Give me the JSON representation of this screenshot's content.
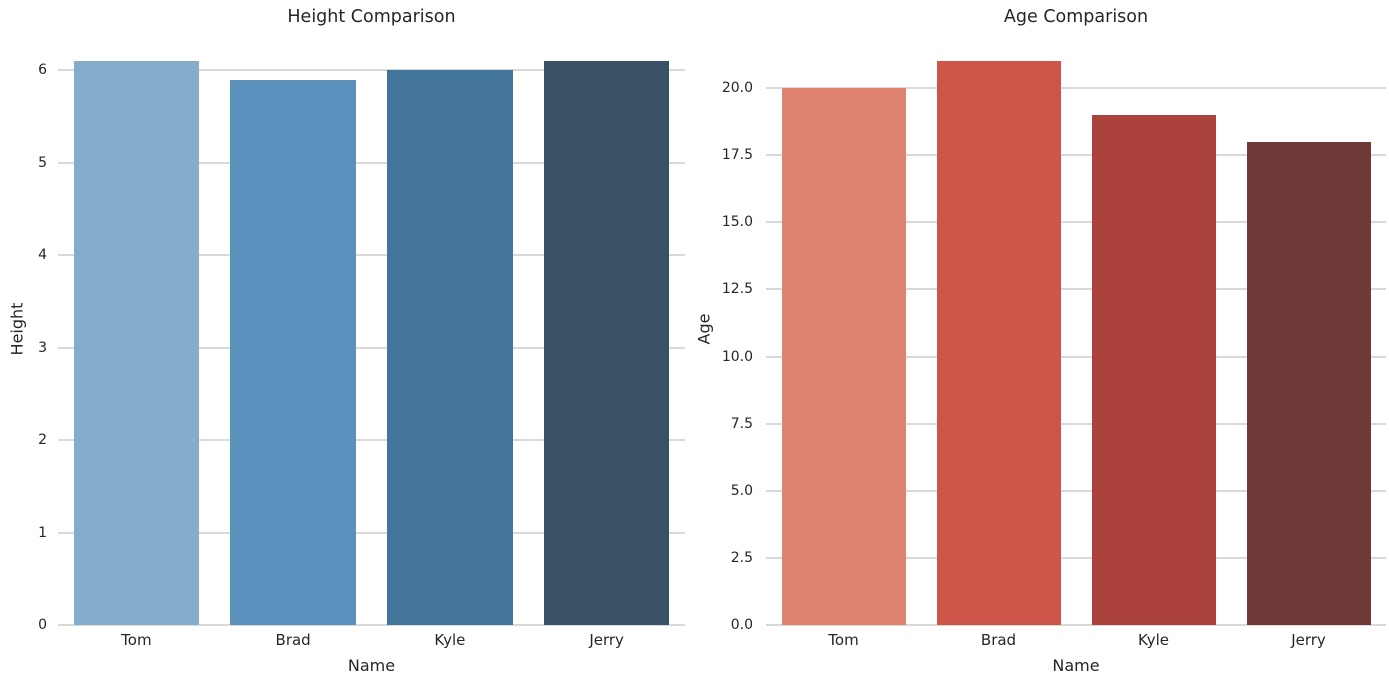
{
  "figure": {
    "background": "#ffffff",
    "grid_color": "#d9d9d9",
    "text_color": "#262626"
  },
  "chart_data": [
    {
      "type": "bar",
      "title": "Height Comparison",
      "xlabel": "Name",
      "ylabel": "Height",
      "categories": [
        "Tom",
        "Brad",
        "Kyle",
        "Jerry"
      ],
      "values": [
        6.1,
        5.9,
        6.0,
        6.1
      ],
      "ylim": [
        0,
        6.405
      ],
      "ytick_labels": [
        "0",
        "1",
        "2",
        "3",
        "4",
        "5",
        "6"
      ],
      "ytick_values": [
        0,
        1,
        2,
        3,
        4,
        5,
        6
      ],
      "bar_colors": [
        "#85adcb",
        "#5b92bd",
        "#43759b",
        "#3a5065"
      ],
      "grid": "horizontal",
      "legend": "none"
    },
    {
      "type": "bar",
      "title": "Age Comparison",
      "xlabel": "Name",
      "ylabel": "Age",
      "categories": [
        "Tom",
        "Brad",
        "Kyle",
        "Jerry"
      ],
      "values": [
        20,
        21,
        19,
        18
      ],
      "ylim": [
        0,
        22.05
      ],
      "ytick_labels": [
        "0.0",
        "2.5",
        "5.0",
        "7.5",
        "10.0",
        "12.5",
        "15.0",
        "17.5",
        "20.0"
      ],
      "ytick_values": [
        0,
        2.5,
        5,
        7.5,
        10,
        12.5,
        15,
        17.5,
        20
      ],
      "bar_colors": [
        "#df8270",
        "#cd5549",
        "#ab423c",
        "#6f3937"
      ],
      "grid": "horizontal",
      "legend": "none"
    }
  ]
}
